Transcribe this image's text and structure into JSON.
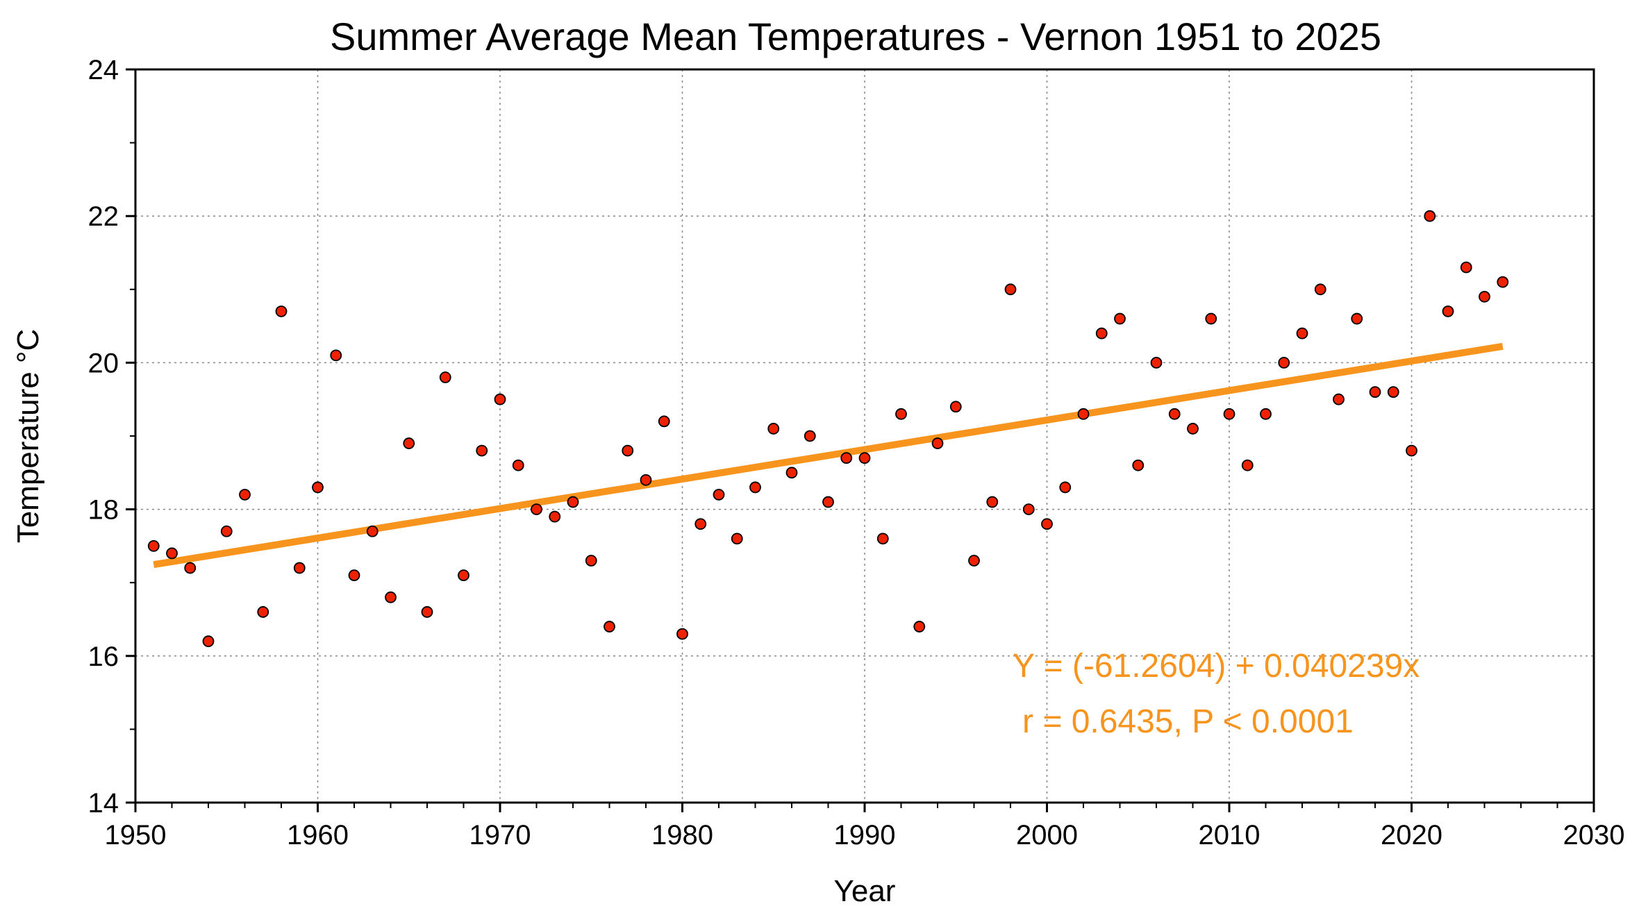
{
  "chart_data": {
    "type": "scatter",
    "title": "Summer Average Mean Temperatures - Vernon 1951 to 2025",
    "xlabel": "Year",
    "ylabel": "Temperature °C",
    "xlim": [
      1950,
      2030
    ],
    "ylim": [
      14,
      24
    ],
    "x_ticks": [
      1950,
      1960,
      1970,
      1980,
      1990,
      2000,
      2010,
      2020,
      2030
    ],
    "y_ticks": [
      14,
      16,
      18,
      20,
      22,
      24
    ],
    "grid": true,
    "marker_color": "#ee2200",
    "trend_color": "#f7941d",
    "points": [
      [
        1951,
        17.5
      ],
      [
        1952,
        17.4
      ],
      [
        1953,
        17.2
      ],
      [
        1954,
        16.2
      ],
      [
        1955,
        17.7
      ],
      [
        1956,
        18.2
      ],
      [
        1957,
        16.6
      ],
      [
        1958,
        20.7
      ],
      [
        1959,
        17.2
      ],
      [
        1960,
        18.3
      ],
      [
        1961,
        20.1
      ],
      [
        1962,
        17.1
      ],
      [
        1963,
        17.7
      ],
      [
        1964,
        16.8
      ],
      [
        1965,
        18.9
      ],
      [
        1966,
        16.6
      ],
      [
        1967,
        19.8
      ],
      [
        1968,
        17.1
      ],
      [
        1969,
        18.8
      ],
      [
        1970,
        19.5
      ],
      [
        1971,
        18.6
      ],
      [
        1972,
        18.0
      ],
      [
        1973,
        17.9
      ],
      [
        1974,
        18.1
      ],
      [
        1975,
        17.3
      ],
      [
        1976,
        16.4
      ],
      [
        1977,
        18.8
      ],
      [
        1978,
        18.4
      ],
      [
        1979,
        19.2
      ],
      [
        1980,
        16.3
      ],
      [
        1981,
        17.8
      ],
      [
        1982,
        18.2
      ],
      [
        1983,
        17.6
      ],
      [
        1984,
        18.3
      ],
      [
        1985,
        19.1
      ],
      [
        1986,
        18.5
      ],
      [
        1987,
        19.0
      ],
      [
        1988,
        18.1
      ],
      [
        1989,
        18.7
      ],
      [
        1990,
        18.7
      ],
      [
        1991,
        17.6
      ],
      [
        1992,
        19.3
      ],
      [
        1993,
        16.4
      ],
      [
        1994,
        18.9
      ],
      [
        1995,
        19.4
      ],
      [
        1996,
        17.3
      ],
      [
        1997,
        18.1
      ],
      [
        1998,
        21.0
      ],
      [
        1999,
        18.0
      ],
      [
        2000,
        17.8
      ],
      [
        2001,
        18.3
      ],
      [
        2002,
        19.3
      ],
      [
        2003,
        20.4
      ],
      [
        2004,
        20.6
      ],
      [
        2005,
        18.6
      ],
      [
        2006,
        20.0
      ],
      [
        2007,
        19.3
      ],
      [
        2008,
        19.1
      ],
      [
        2009,
        20.6
      ],
      [
        2010,
        19.3
      ],
      [
        2011,
        18.6
      ],
      [
        2012,
        19.3
      ],
      [
        2013,
        20.0
      ],
      [
        2014,
        20.4
      ],
      [
        2015,
        21.0
      ],
      [
        2016,
        19.5
      ],
      [
        2017,
        20.6
      ],
      [
        2018,
        19.6
      ],
      [
        2019,
        19.6
      ],
      [
        2020,
        18.8
      ],
      [
        2021,
        22.0
      ],
      [
        2022,
        20.7
      ],
      [
        2023,
        21.3
      ],
      [
        2024,
        20.9
      ],
      [
        2025,
        21.1
      ]
    ],
    "trend": {
      "intercept": -61.2604,
      "slope": 0.040239,
      "x_start": 1951,
      "x_end": 2025
    },
    "annotations": [
      "Y = (-61.2604) + 0.040239x",
      "r = 0.6435, P < 0.0001"
    ]
  }
}
